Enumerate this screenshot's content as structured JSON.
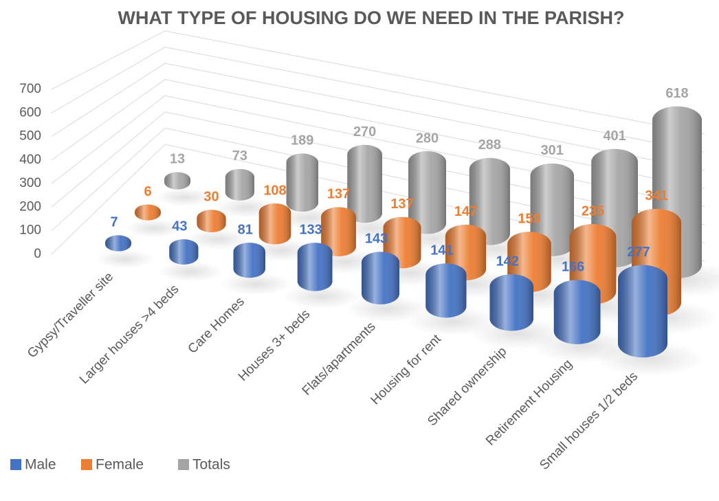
{
  "chart_data": {
    "type": "bar3d",
    "title": "WHAT TYPE OF HOUSING DO WE NEED IN THE PARISH?",
    "categories": [
      "Gypsy/Traveller site",
      "Larger houses >4 beds",
      "Care Homes",
      "Houses 3+ beds",
      "Flats/apartments",
      "Housing for rent",
      "Shared ownership",
      "Retirement Housing",
      "Small houses 1/2 beds"
    ],
    "series": [
      {
        "name": "Male",
        "color": "#4472c4",
        "values": [
          7,
          43,
          81,
          133,
          143,
          141,
          142,
          166,
          277
        ]
      },
      {
        "name": "Female",
        "color": "#ed7d31",
        "values": [
          6,
          30,
          108,
          137,
          137,
          147,
          159,
          235,
          341
        ]
      },
      {
        "name": "Totals",
        "color": "#a5a5a5",
        "values": [
          13,
          73,
          189,
          270,
          280,
          288,
          301,
          401,
          618
        ]
      }
    ],
    "ylim": [
      0,
      700
    ],
    "yticks": [
      0,
      100,
      200,
      300,
      400,
      500,
      600,
      700
    ],
    "grid": true,
    "legend": "bottom-left"
  }
}
